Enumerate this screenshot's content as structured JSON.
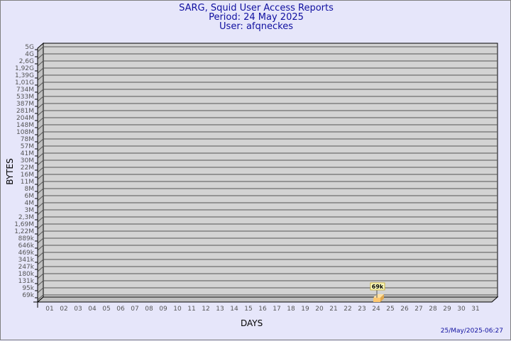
{
  "header": {
    "title": "SARG, Squid User Access Reports",
    "period": "Period: 24 May 2025",
    "user": "User: afqneckes"
  },
  "footer": {
    "timestamp": "25/May/2025-06:27"
  },
  "chart_data": {
    "type": "bar",
    "xlabel": "DAYS",
    "ylabel": "BYTES",
    "y_scale": "log",
    "grid": true,
    "y_ticks": [
      "5G",
      "4G",
      "2,6G",
      "1,92G",
      "1,39G",
      "1,01G",
      "734M",
      "533M",
      "387M",
      "281M",
      "204M",
      "148M",
      "108M",
      "78M",
      "57M",
      "41M",
      "30M",
      "22M",
      "16M",
      "11M",
      "8M",
      "6M",
      "4M",
      "3M",
      "2,3M",
      "1,69M",
      "1,22M",
      "889k",
      "646k",
      "469k",
      "341k",
      "247k",
      "180k",
      "131k",
      "95k",
      "69k"
    ],
    "categories": [
      "01",
      "02",
      "03",
      "04",
      "05",
      "06",
      "07",
      "08",
      "09",
      "10",
      "11",
      "12",
      "13",
      "14",
      "15",
      "16",
      "17",
      "18",
      "19",
      "20",
      "21",
      "22",
      "23",
      "24",
      "25",
      "26",
      "27",
      "28",
      "29",
      "30",
      "31"
    ],
    "bars": [
      {
        "day": "24",
        "value": "69k",
        "label": "69k"
      }
    ],
    "colors": {
      "bar": "#ffc870",
      "panel": "#d3d3d3",
      "background": "#e6e6fa",
      "title": "#1010a0"
    }
  }
}
